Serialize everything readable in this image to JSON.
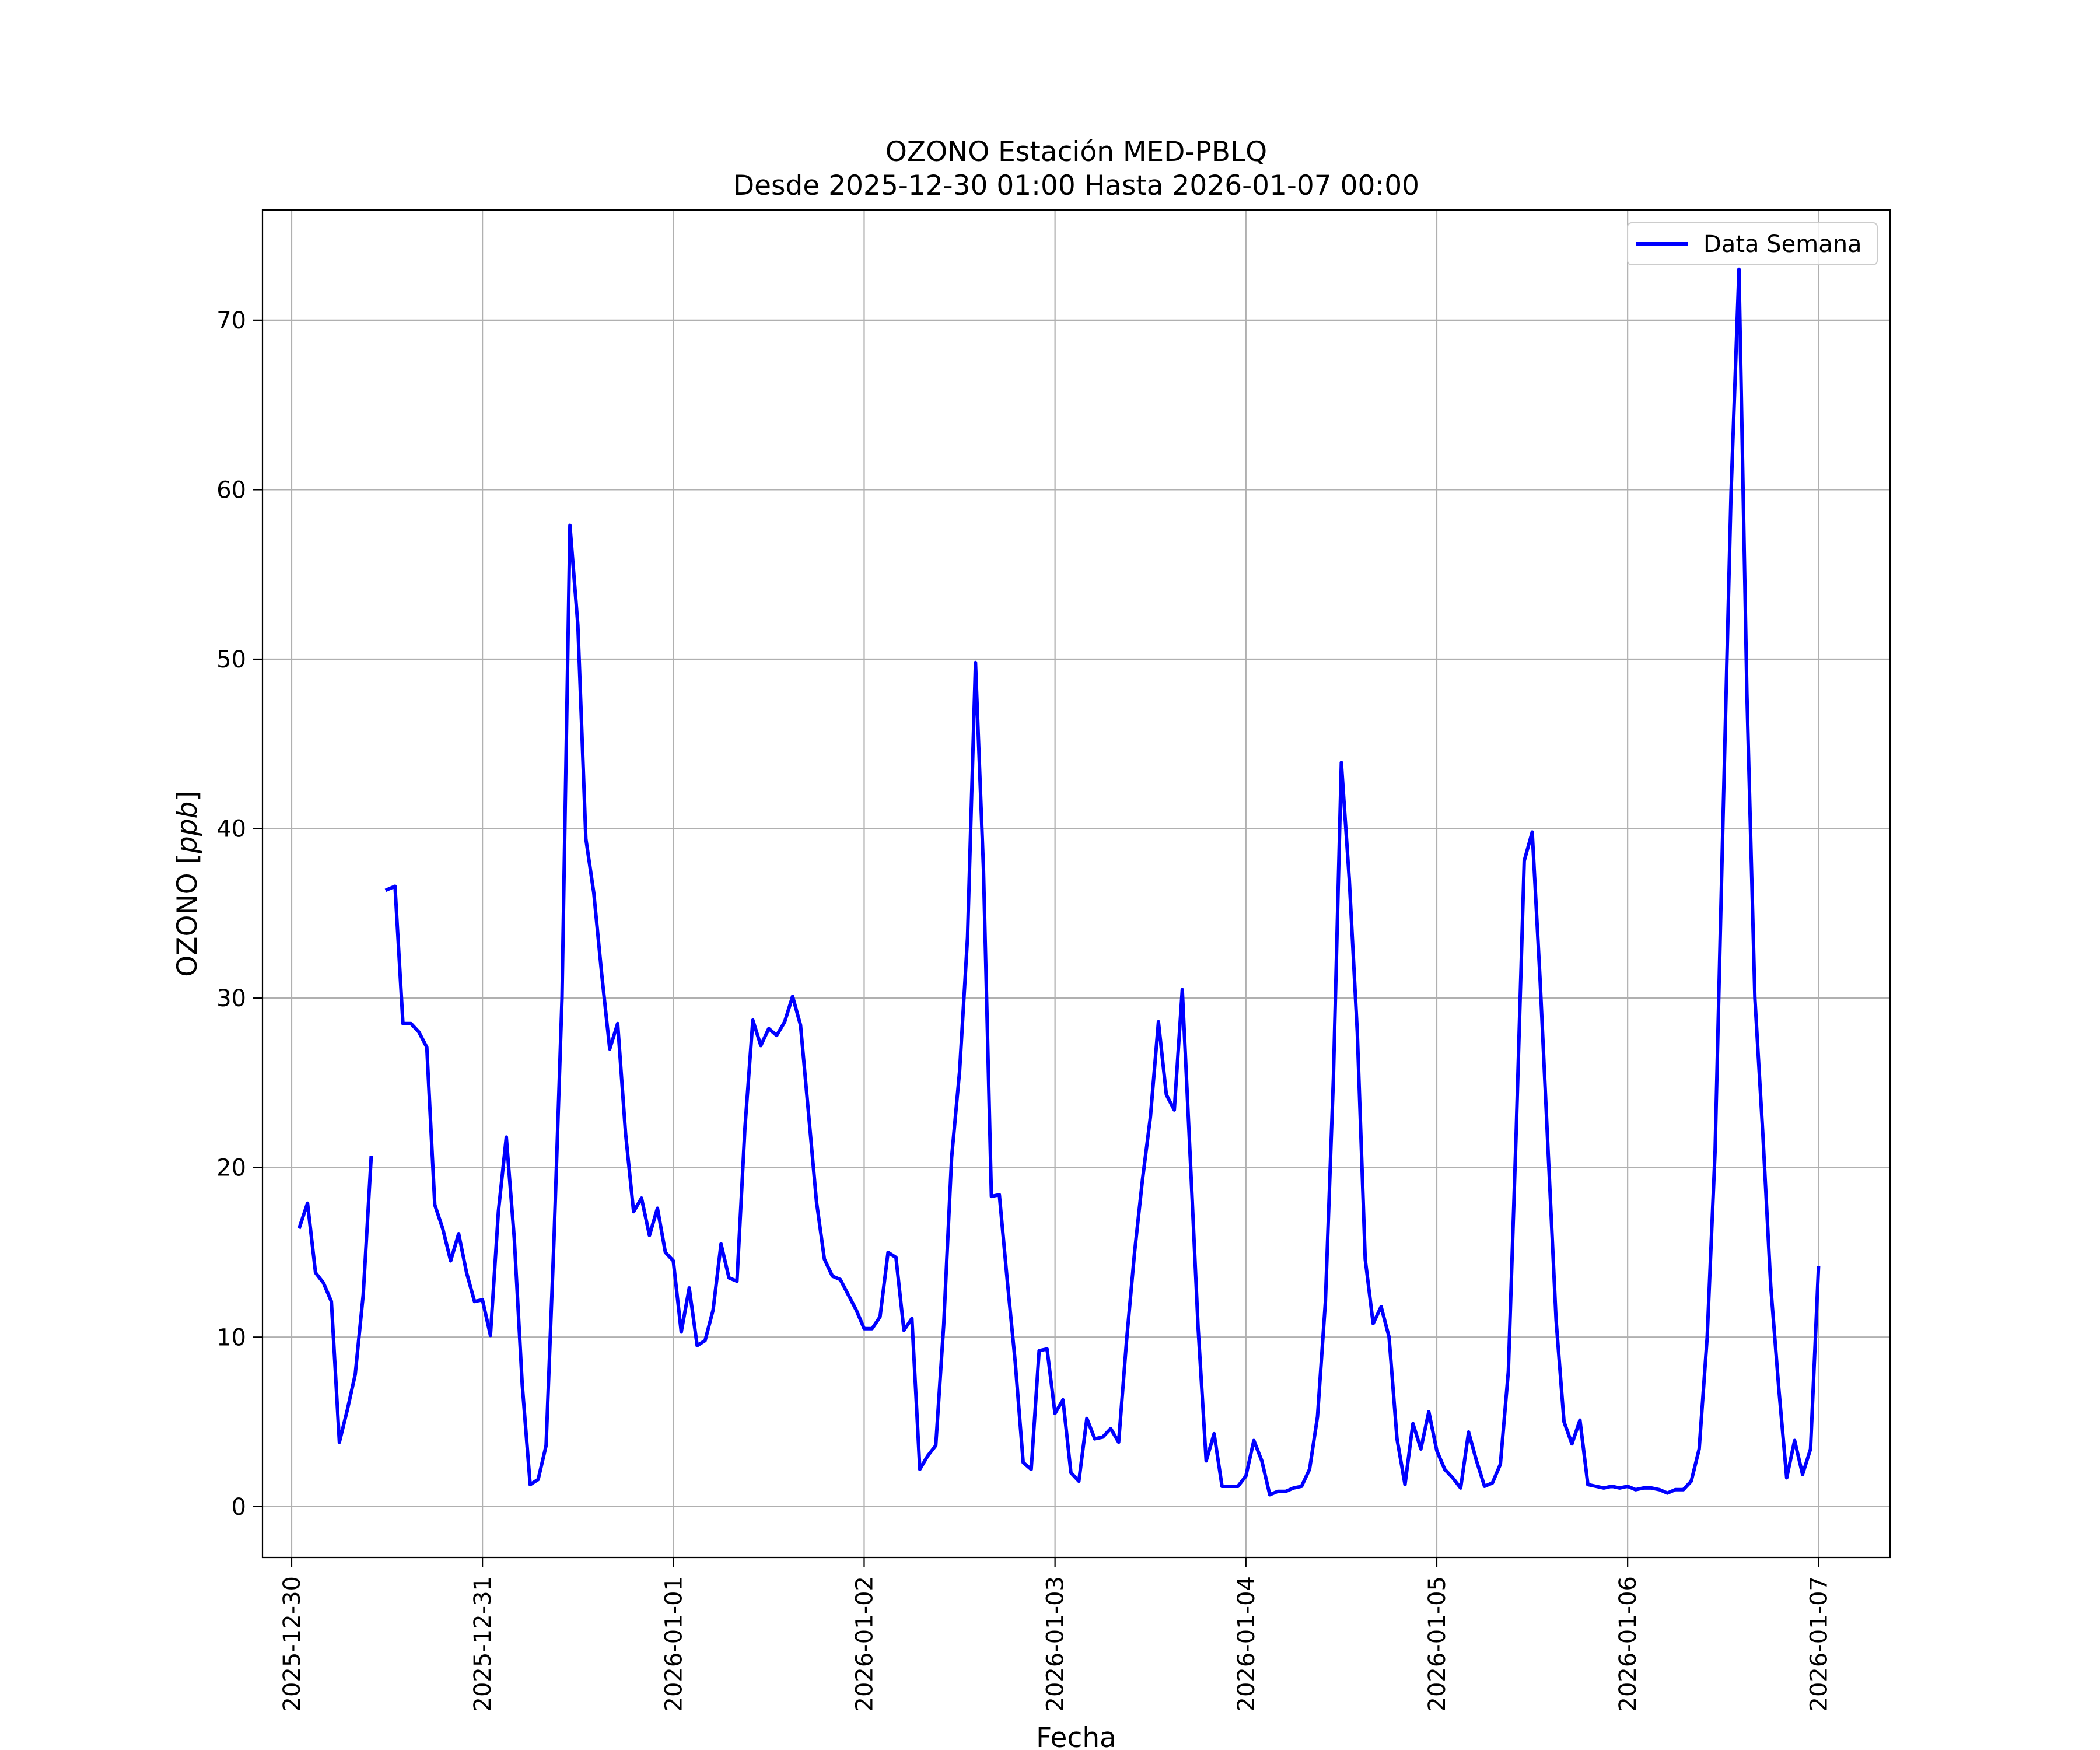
{
  "chart_data": {
    "type": "line",
    "title": "OZONO Estación MED-PBLQ",
    "subtitle": "Desde 2025-12-30 01:00 Hasta 2026-01-07 00:00",
    "xlabel": "Fecha",
    "ylabel": "OZONO [ppb]",
    "ylabel_text": "OZONO ",
    "ylabel_unit": "ppb",
    "xlim": [
      "2025-12-29 20:20",
      "2026-01-07 09:00"
    ],
    "ylim": [
      -3,
      76.5
    ],
    "x_ticks": [
      "2025-12-30",
      "2025-12-31",
      "2026-01-01",
      "2026-01-02",
      "2026-01-03",
      "2026-01-04",
      "2026-01-05",
      "2026-01-06",
      "2026-01-07"
    ],
    "y_ticks": [
      0,
      10,
      20,
      30,
      40,
      50,
      60,
      70
    ],
    "grid": true,
    "legend_position": "top-right",
    "series": [
      {
        "name": "Data Semana",
        "color": "#0000ff",
        "points": [
          [
            "2025-12-30 01:00",
            16.5
          ],
          [
            "2025-12-30 02:00",
            17.9
          ],
          [
            "2025-12-30 03:00",
            13.8
          ],
          [
            "2025-12-30 04:00",
            13.2
          ],
          [
            "2025-12-30 05:00",
            12.1
          ],
          [
            "2025-12-30 06:00",
            3.8
          ],
          [
            "2025-12-30 07:00",
            5.7
          ],
          [
            "2025-12-30 08:00",
            7.8
          ],
          [
            "2025-12-30 09:00",
            12.5
          ],
          [
            "2025-12-30 10:00",
            20.6
          ],
          [
            "2025-12-30 11:00",
            null
          ],
          [
            "2025-12-30 12:00",
            36.4
          ],
          [
            "2025-12-30 13:00",
            36.6
          ],
          [
            "2025-12-30 14:00",
            28.5
          ],
          [
            "2025-12-30 15:00",
            28.5
          ],
          [
            "2025-12-30 16:00",
            28.0
          ],
          [
            "2025-12-30 17:00",
            27.1
          ],
          [
            "2025-12-30 18:00",
            17.8
          ],
          [
            "2025-12-30 19:00",
            16.4
          ],
          [
            "2025-12-30 20:00",
            14.5
          ],
          [
            "2025-12-30 21:00",
            16.1
          ],
          [
            "2025-12-30 22:00",
            13.8
          ],
          [
            "2025-12-30 23:00",
            12.1
          ],
          [
            "2025-12-31 00:00",
            12.2
          ],
          [
            "2025-12-31 01:00",
            10.1
          ],
          [
            "2025-12-31 02:00",
            17.4
          ],
          [
            "2025-12-31 03:00",
            21.8
          ],
          [
            "2025-12-31 04:00",
            15.8
          ],
          [
            "2025-12-31 05:00",
            7.2
          ],
          [
            "2025-12-31 06:00",
            1.3
          ],
          [
            "2025-12-31 07:00",
            1.6
          ],
          [
            "2025-12-31 08:00",
            3.6
          ],
          [
            "2025-12-31 09:00",
            15.8
          ],
          [
            "2025-12-31 10:00",
            30.0
          ],
          [
            "2025-12-31 11:00",
            57.9
          ],
          [
            "2025-12-31 12:00",
            52.0
          ],
          [
            "2025-12-31 13:00",
            39.4
          ],
          [
            "2025-12-31 14:00",
            36.2
          ],
          [
            "2025-12-31 15:00",
            31.4
          ],
          [
            "2025-12-31 16:00",
            27.0
          ],
          [
            "2025-12-31 17:00",
            28.5
          ],
          [
            "2025-12-31 18:00",
            22.0
          ],
          [
            "2025-12-31 19:00",
            17.4
          ],
          [
            "2025-12-31 20:00",
            18.2
          ],
          [
            "2025-12-31 21:00",
            16.0
          ],
          [
            "2025-12-31 22:00",
            17.6
          ],
          [
            "2025-12-31 23:00",
            15.0
          ],
          [
            "2026-01-01 00:00",
            14.5
          ],
          [
            "2026-01-01 01:00",
            10.3
          ],
          [
            "2026-01-01 02:00",
            12.9
          ],
          [
            "2026-01-01 03:00",
            9.5
          ],
          [
            "2026-01-01 04:00",
            9.8
          ],
          [
            "2026-01-01 05:00",
            11.6
          ],
          [
            "2026-01-01 06:00",
            15.5
          ],
          [
            "2026-01-01 07:00",
            13.5
          ],
          [
            "2026-01-01 08:00",
            13.3
          ],
          [
            "2026-01-01 09:00",
            22.3
          ],
          [
            "2026-01-01 10:00",
            28.7
          ],
          [
            "2026-01-01 11:00",
            27.2
          ],
          [
            "2026-01-01 12:00",
            28.2
          ],
          [
            "2026-01-01 13:00",
            27.8
          ],
          [
            "2026-01-01 14:00",
            28.6
          ],
          [
            "2026-01-01 15:00",
            30.1
          ],
          [
            "2026-01-01 16:00",
            28.4
          ],
          [
            "2026-01-01 17:00",
            23.2
          ],
          [
            "2026-01-01 18:00",
            18.0
          ],
          [
            "2026-01-01 19:00",
            14.6
          ],
          [
            "2026-01-01 20:00",
            13.6
          ],
          [
            "2026-01-01 21:00",
            13.4
          ],
          [
            "2026-01-01 22:00",
            12.5
          ],
          [
            "2026-01-01 23:00",
            11.6
          ],
          [
            "2026-01-02 00:00",
            10.5
          ],
          [
            "2026-01-02 01:00",
            10.5
          ],
          [
            "2026-01-02 02:00",
            11.2
          ],
          [
            "2026-01-02 03:00",
            15.0
          ],
          [
            "2026-01-02 04:00",
            14.7
          ],
          [
            "2026-01-02 05:00",
            10.4
          ],
          [
            "2026-01-02 06:00",
            11.1
          ],
          [
            "2026-01-02 07:00",
            2.2
          ],
          [
            "2026-01-02 08:00",
            3.0
          ],
          [
            "2026-01-02 09:00",
            3.6
          ],
          [
            "2026-01-02 10:00",
            10.7
          ],
          [
            "2026-01-02 11:00",
            20.6
          ],
          [
            "2026-01-02 12:00",
            25.7
          ],
          [
            "2026-01-02 13:00",
            33.6
          ],
          [
            "2026-01-02 14:00",
            49.8
          ],
          [
            "2026-01-02 15:00",
            37.6
          ],
          [
            "2026-01-02 16:00",
            18.3
          ],
          [
            "2026-01-02 17:00",
            18.4
          ],
          [
            "2026-01-02 18:00",
            13.3
          ],
          [
            "2026-01-02 19:00",
            8.5
          ],
          [
            "2026-01-02 20:00",
            2.6
          ],
          [
            "2026-01-02 21:00",
            2.2
          ],
          [
            "2026-01-02 22:00",
            9.2
          ],
          [
            "2026-01-02 23:00",
            9.3
          ],
          [
            "2026-01-03 00:00",
            5.5
          ],
          [
            "2026-01-03 01:00",
            6.3
          ],
          [
            "2026-01-03 02:00",
            2.0
          ],
          [
            "2026-01-03 03:00",
            1.5
          ],
          [
            "2026-01-03 04:00",
            5.2
          ],
          [
            "2026-01-03 05:00",
            4.0
          ],
          [
            "2026-01-03 06:00",
            4.1
          ],
          [
            "2026-01-03 07:00",
            4.6
          ],
          [
            "2026-01-03 08:00",
            3.8
          ],
          [
            "2026-01-03 09:00",
            9.8
          ],
          [
            "2026-01-03 10:00",
            15.0
          ],
          [
            "2026-01-03 11:00",
            19.3
          ],
          [
            "2026-01-03 12:00",
            23.0
          ],
          [
            "2026-01-03 13:00",
            28.6
          ],
          [
            "2026-01-03 14:00",
            24.3
          ],
          [
            "2026-01-03 15:00",
            23.4
          ],
          [
            "2026-01-03 16:00",
            30.5
          ],
          [
            "2026-01-03 17:00",
            20.6
          ],
          [
            "2026-01-03 18:00",
            10.5
          ],
          [
            "2026-01-03 19:00",
            2.7
          ],
          [
            "2026-01-03 20:00",
            4.3
          ],
          [
            "2026-01-03 21:00",
            1.2
          ],
          [
            "2026-01-03 22:00",
            1.2
          ],
          [
            "2026-01-03 23:00",
            1.2
          ],
          [
            "2026-01-04 00:00",
            1.8
          ],
          [
            "2026-01-04 01:00",
            3.9
          ],
          [
            "2026-01-04 02:00",
            2.7
          ],
          [
            "2026-01-04 03:00",
            0.7
          ],
          [
            "2026-01-04 04:00",
            0.9
          ],
          [
            "2026-01-04 05:00",
            0.9
          ],
          [
            "2026-01-04 06:00",
            1.1
          ],
          [
            "2026-01-04 07:00",
            1.2
          ],
          [
            "2026-01-04 08:00",
            2.2
          ],
          [
            "2026-01-04 09:00",
            5.3
          ],
          [
            "2026-01-04 10:00",
            12.1
          ],
          [
            "2026-01-04 11:00",
            25.3
          ],
          [
            "2026-01-04 12:00",
            43.9
          ],
          [
            "2026-01-04 13:00",
            37.0
          ],
          [
            "2026-01-04 14:00",
            28.0
          ],
          [
            "2026-01-04 15:00",
            14.6
          ],
          [
            "2026-01-04 16:00",
            10.8
          ],
          [
            "2026-01-04 17:00",
            11.8
          ],
          [
            "2026-01-04 18:00",
            10.0
          ],
          [
            "2026-01-04 19:00",
            4.0
          ],
          [
            "2026-01-04 20:00",
            1.3
          ],
          [
            "2026-01-04 21:00",
            4.9
          ],
          [
            "2026-01-04 22:00",
            3.4
          ],
          [
            "2026-01-04 23:00",
            5.6
          ],
          [
            "2026-01-05 00:00",
            3.3
          ],
          [
            "2026-01-05 01:00",
            2.2
          ],
          [
            "2026-01-05 02:00",
            1.7
          ],
          [
            "2026-01-05 03:00",
            1.1
          ],
          [
            "2026-01-05 04:00",
            4.4
          ],
          [
            "2026-01-05 05:00",
            2.7
          ],
          [
            "2026-01-05 06:00",
            1.2
          ],
          [
            "2026-01-05 07:00",
            1.4
          ],
          [
            "2026-01-05 08:00",
            2.5
          ],
          [
            "2026-01-05 09:00",
            8.0
          ],
          [
            "2026-01-05 10:00",
            22.3
          ],
          [
            "2026-01-05 11:00",
            38.1
          ],
          [
            "2026-01-05 12:00",
            39.8
          ],
          [
            "2026-01-05 13:00",
            31.0
          ],
          [
            "2026-01-05 14:00",
            21.0
          ],
          [
            "2026-01-05 15:00",
            11.0
          ],
          [
            "2026-01-05 16:00",
            5.0
          ],
          [
            "2026-01-05 17:00",
            3.7
          ],
          [
            "2026-01-05 18:00",
            5.1
          ],
          [
            "2026-01-05 19:00",
            1.3
          ],
          [
            "2026-01-05 20:00",
            1.2
          ],
          [
            "2026-01-05 21:00",
            1.1
          ],
          [
            "2026-01-05 22:00",
            1.2
          ],
          [
            "2026-01-05 23:00",
            1.1
          ],
          [
            "2026-01-06 00:00",
            1.2
          ],
          [
            "2026-01-06 01:00",
            1.0
          ],
          [
            "2026-01-06 02:00",
            1.1
          ],
          [
            "2026-01-06 03:00",
            1.1
          ],
          [
            "2026-01-06 04:00",
            1.0
          ],
          [
            "2026-01-06 05:00",
            0.8
          ],
          [
            "2026-01-06 06:00",
            1.0
          ],
          [
            "2026-01-06 07:00",
            1.0
          ],
          [
            "2026-01-06 08:00",
            1.5
          ],
          [
            "2026-01-06 09:00",
            3.4
          ],
          [
            "2026-01-06 10:00",
            10.0
          ],
          [
            "2026-01-06 11:00",
            21.0
          ],
          [
            "2026-01-06 12:00",
            40.6
          ],
          [
            "2026-01-06 13:00",
            59.8
          ],
          [
            "2026-01-06 14:00",
            73.0
          ],
          [
            "2026-01-06 15:00",
            48.0
          ],
          [
            "2026-01-06 16:00",
            30.0
          ],
          [
            "2026-01-06 17:00",
            22.0
          ],
          [
            "2026-01-06 18:00",
            13.0
          ],
          [
            "2026-01-06 19:00",
            7.0
          ],
          [
            "2026-01-06 20:00",
            1.7
          ],
          [
            "2026-01-06 21:00",
            3.9
          ],
          [
            "2026-01-06 22:00",
            1.9
          ],
          [
            "2026-01-06 23:00",
            3.4
          ],
          [
            "2026-01-07 00:00",
            14.1
          ]
        ]
      }
    ]
  }
}
